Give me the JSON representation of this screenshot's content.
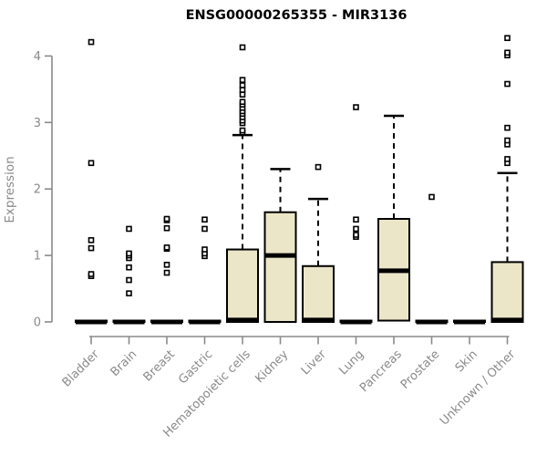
{
  "chart_data": {
    "type": "boxplot",
    "title": "ENSG00000265355 - MIR3136",
    "ylabel": "Expression",
    "xlabel": "",
    "ylim": [
      0,
      4.3
    ],
    "yticks": [
      0,
      1,
      2,
      3,
      4
    ],
    "grid": false,
    "legend": "none",
    "colors": {
      "box_fill": "#ECE6C9",
      "box_stroke": "#000000",
      "axis": "#8A8A8A",
      "tick_text": "#8A8A8A",
      "title_text": "#000000",
      "background": "#FFFFFF"
    },
    "series": [
      {
        "category": "Bladder",
        "whisker_low": 0,
        "q1": 0,
        "median": 0,
        "q3": 0.02,
        "whisker_high": 0.02,
        "outliers": [
          0.69,
          0.72,
          1.11,
          1.23,
          2.39,
          4.21
        ]
      },
      {
        "category": "Brain",
        "whisker_low": 0,
        "q1": 0,
        "median": 0,
        "q3": 0.02,
        "whisker_high": 0.02,
        "outliers": [
          0.43,
          0.63,
          0.82,
          0.96,
          1.0,
          1.03,
          1.4
        ]
      },
      {
        "category": "Breast",
        "whisker_low": 0,
        "q1": 0,
        "median": 0,
        "q3": 0.02,
        "whisker_high": 0.02,
        "outliers": [
          0.74,
          0.86,
          1.1,
          1.12,
          1.41,
          1.53,
          1.55
        ]
      },
      {
        "category": "Gastric",
        "whisker_low": 0,
        "q1": 0,
        "median": 0,
        "q3": 0.02,
        "whisker_high": 0.02,
        "outliers": [
          0.99,
          1.03,
          1.09,
          1.4,
          1.54
        ]
      },
      {
        "category": "Hematopoietic cells",
        "whisker_low": 0,
        "q1": 0,
        "median": 0.03,
        "q3": 1.09,
        "whisker_high": 2.81,
        "outliers": [
          2.85,
          2.88,
          2.99,
          3.03,
          3.08,
          3.13,
          3.17,
          3.22,
          3.27,
          3.31,
          3.42,
          3.49,
          3.56,
          3.64,
          4.13
        ]
      },
      {
        "category": "Kidney",
        "whisker_low": 0,
        "q1": 0,
        "median": 1.0,
        "q3": 1.65,
        "whisker_high": 2.3,
        "outliers": []
      },
      {
        "category": "Liver",
        "whisker_low": 0,
        "q1": 0,
        "median": 0.03,
        "q3": 0.84,
        "whisker_high": 1.85,
        "outliers": [
          2.33
        ]
      },
      {
        "category": "Lung",
        "whisker_low": 0,
        "q1": 0,
        "median": 0,
        "q3": 0.02,
        "whisker_high": 0.02,
        "outliers": [
          1.28,
          1.31,
          1.4,
          1.54,
          3.23
        ]
      },
      {
        "category": "Pancreas",
        "whisker_low": 0.02,
        "q1": 0.02,
        "median": 0.77,
        "q3": 1.55,
        "whisker_high": 3.1,
        "outliers": []
      },
      {
        "category": "Prostate",
        "whisker_low": 0,
        "q1": 0,
        "median": 0,
        "q3": 0.02,
        "whisker_high": 0.02,
        "outliers": [
          1.88
        ]
      },
      {
        "category": "Skin",
        "whisker_low": 0,
        "q1": 0,
        "median": 0,
        "q3": 0.02,
        "whisker_high": 0.02,
        "outliers": []
      },
      {
        "category": "Unknown / Other",
        "whisker_low": 0,
        "q1": 0,
        "median": 0.03,
        "q3": 0.9,
        "whisker_high": 2.24,
        "outliers": [
          2.39,
          2.45,
          2.67,
          2.73,
          2.92,
          3.58,
          4.01,
          4.05,
          4.27
        ]
      }
    ]
  }
}
